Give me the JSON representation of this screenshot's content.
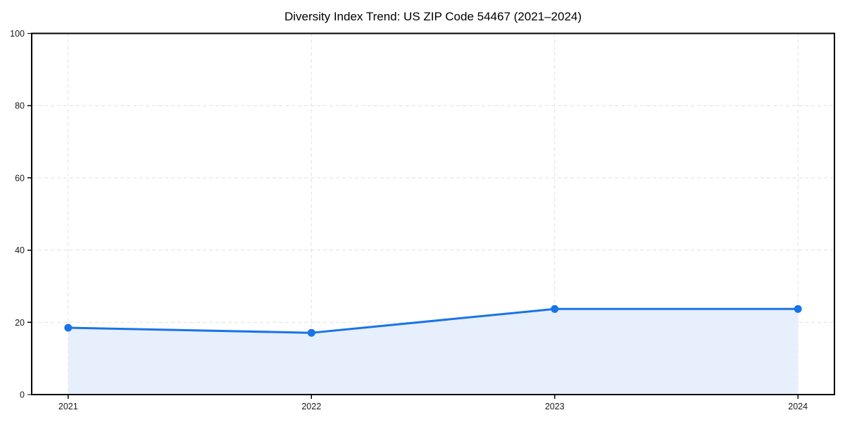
{
  "figure": {
    "background": "#ffffff"
  },
  "chart_data": {
    "type": "area",
    "title": "Diversity Index Trend: US ZIP Code 54467 (2021–2024)",
    "categories": [
      "2021",
      "2022",
      "2023",
      "2024"
    ],
    "series": [
      {
        "name": "Diversity Index",
        "values": [
          18.5,
          17.1,
          23.7,
          23.7
        ]
      }
    ],
    "xlabel": "",
    "ylabel": "",
    "ylim": [
      0,
      100
    ],
    "yticks": [
      0,
      20,
      40,
      60,
      80,
      100
    ],
    "grid": true,
    "grid_style": "dashed",
    "legend_position": "none",
    "marker": "circle",
    "colors": {
      "line": "#1a73e8",
      "fill": "#e7effc",
      "grid": "#e0e0e0",
      "spine": "#000000",
      "tick": "#000000",
      "tick_label": "#1a1a1a",
      "title": "#000000"
    }
  }
}
